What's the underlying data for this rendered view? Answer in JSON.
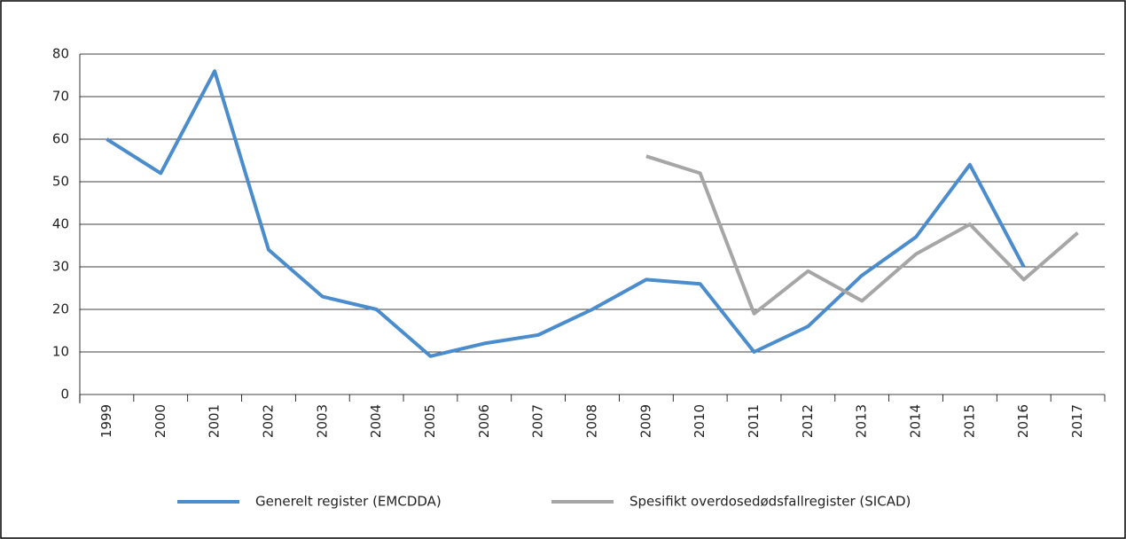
{
  "chart_data": {
    "type": "line",
    "categories": [
      "1999",
      "2000",
      "2001",
      "2002",
      "2003",
      "2004",
      "2005",
      "2006",
      "2007",
      "2008",
      "2009",
      "2010",
      "2011",
      "2012",
      "2013",
      "2014",
      "2015",
      "2016",
      "2017"
    ],
    "series": [
      {
        "name": "Generelt register (EMCDDA)",
        "color": "#4a8ccc",
        "values": [
          60,
          52,
          76,
          34,
          23,
          20,
          9,
          12,
          14,
          20,
          27,
          26,
          10,
          16,
          28,
          37,
          54,
          30,
          null
        ]
      },
      {
        "name": "Spesifikt overdosedødsfallregister (SICAD)",
        "color": "#a6a6a6",
        "values": [
          null,
          null,
          null,
          null,
          null,
          null,
          null,
          null,
          null,
          null,
          56,
          52,
          19,
          29,
          22,
          33,
          40,
          27,
          38
        ]
      }
    ],
    "ylim": [
      0,
      80
    ],
    "yticks": [
      0,
      10,
      20,
      30,
      40,
      50,
      60,
      70,
      80
    ],
    "grid": true,
    "legend": "bottom"
  }
}
